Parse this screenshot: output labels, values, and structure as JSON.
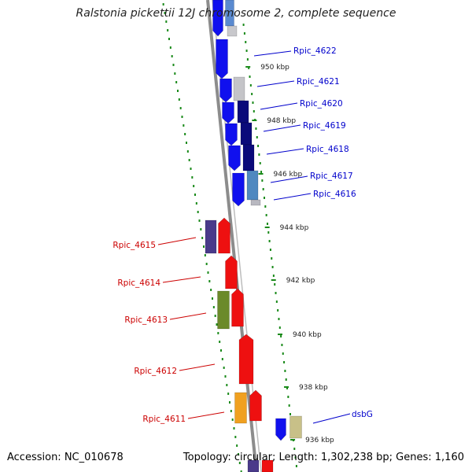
{
  "title": "Ralstonia pickettii 12J chromosome 2, complete sequence",
  "footer": {
    "accession": "Accession: NC_010678",
    "summary": "Topology: circular; Length: 1,302,238 bp; Genes: 1,160"
  },
  "colors": {
    "backbone": "#8c8c8c",
    "tick": "#1a8a1a",
    "forward_label": "#0000cc",
    "reverse_label": "#cc0000"
  },
  "scale_labels": [
    "950 kbp",
    "948 kbp",
    "946 kbp",
    "944 kbp",
    "942 kbp",
    "940 kbp",
    "938 kbp",
    "936 kbp"
  ],
  "forward_genes": [
    {
      "label": "Rpic_4622"
    },
    {
      "label": "Rpic_4621"
    },
    {
      "label": "Rpic_4620"
    },
    {
      "label": "Rpic_4619"
    },
    {
      "label": "Rpic_4618"
    },
    {
      "label": "Rpic_4617"
    },
    {
      "label": "Rpic_4616"
    },
    {
      "label": "dsbG"
    }
  ],
  "reverse_genes": [
    {
      "label": "Rpic_4615"
    },
    {
      "label": "Rpic_4614"
    },
    {
      "label": "Rpic_4613"
    },
    {
      "label": "Rpic_4612"
    },
    {
      "label": "Rpic_4611"
    }
  ]
}
